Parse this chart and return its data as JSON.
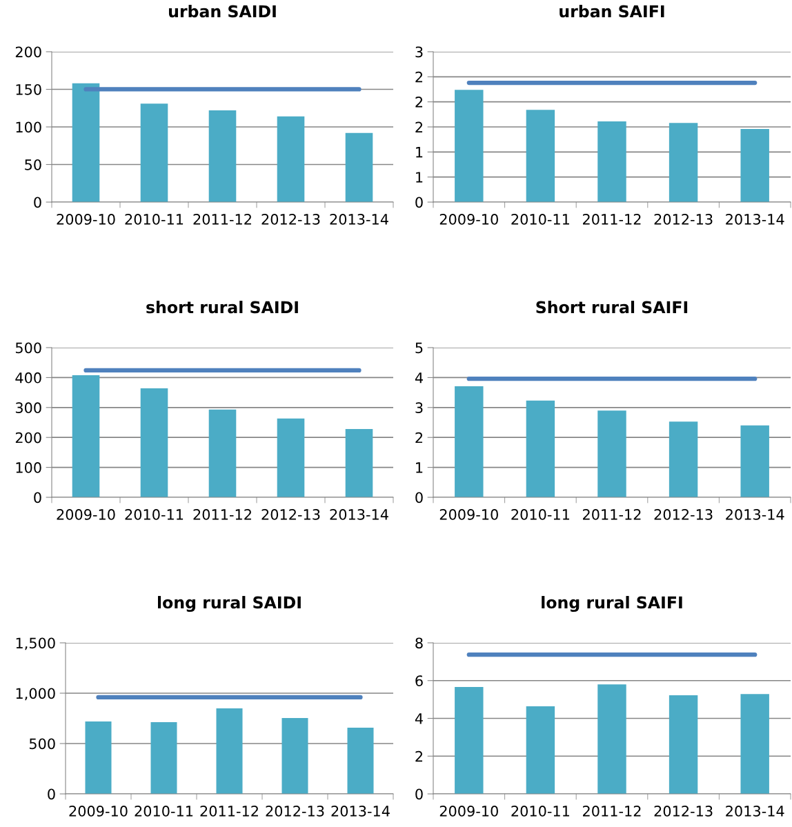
{
  "chart_data": [
    {
      "type": "bar",
      "title": "urban SAIDI",
      "categories": [
        "2009-10",
        "2010-11",
        "2011-12",
        "2012-13",
        "2013-14"
      ],
      "series": [
        {
          "color": "#4bacc6",
          "values": [
            158,
            131,
            122,
            114,
            92
          ]
        },
        {
          "type": "line",
          "color": "#4f81bd",
          "values": [
            150,
            150,
            150,
            150,
            150
          ]
        }
      ],
      "ylim": [
        0,
        200
      ],
      "yticks": [
        0,
        50,
        100,
        150,
        200
      ],
      "grid": "y",
      "legend": false
    },
    {
      "type": "bar",
      "title": "urban SAIFI",
      "categories": [
        "2009-10",
        "2010-11",
        "2011-12",
        "2012-13",
        "2013-14"
      ],
      "series": [
        {
          "color": "#4bacc6",
          "values": [
            2.24,
            1.84,
            1.61,
            1.58,
            1.46
          ]
        },
        {
          "type": "line",
          "color": "#4f81bd",
          "values": [
            2.38,
            2.38,
            2.38,
            2.38,
            2.38
          ]
        }
      ],
      "ylim": [
        0,
        3
      ],
      "yticks": [
        0,
        {
          "value": 0.5,
          "label": "1"
        },
        1,
        {
          "value": 1.5,
          "label": "2"
        },
        2,
        {
          "value": 2.5,
          "label": "2"
        },
        3
      ],
      "grid": "y",
      "legend": false
    },
    {
      "type": "bar",
      "title": "short rural SAIDI",
      "categories": [
        "2009-10",
        "2010-11",
        "2011-12",
        "2012-13",
        "2013-14"
      ],
      "series": [
        {
          "color": "#4bacc6",
          "values": [
            408,
            364,
            293,
            263,
            228
          ]
        },
        {
          "type": "line",
          "color": "#4f81bd",
          "values": [
            424,
            424,
            424,
            424,
            424
          ]
        }
      ],
      "ylim": [
        0,
        500
      ],
      "yticks": [
        0,
        100,
        200,
        300,
        400,
        500
      ],
      "grid": "y",
      "legend": false
    },
    {
      "type": "bar",
      "title": "Short rural SAIFI",
      "categories": [
        "2009-10",
        "2010-11",
        "2011-12",
        "2012-13",
        "2013-14"
      ],
      "series": [
        {
          "color": "#4bacc6",
          "values": [
            3.71,
            3.23,
            2.9,
            2.53,
            2.4
          ]
        },
        {
          "type": "line",
          "color": "#4f81bd",
          "values": [
            3.96,
            3.96,
            3.96,
            3.96,
            3.96
          ]
        }
      ],
      "ylim": [
        0,
        5
      ],
      "yticks": [
        0,
        1,
        2,
        3,
        4,
        5
      ],
      "grid": "y",
      "legend": false
    },
    {
      "type": "bar",
      "title": "long rural SAIDI",
      "categories": [
        "2009-10",
        "2010-11",
        "2011-12",
        "2012-13",
        "2013-14"
      ],
      "series": [
        {
          "color": "#4bacc6",
          "values": [
            719,
            712,
            849,
            753,
            658
          ]
        },
        {
          "type": "line",
          "color": "#4f81bd",
          "values": [
            959,
            959,
            959,
            959,
            959
          ]
        }
      ],
      "ylim": [
        0,
        1500
      ],
      "yticks": [
        0,
        500,
        {
          "value": 1000,
          "label": "1,000"
        },
        {
          "value": 1500,
          "label": "1,500"
        }
      ],
      "grid": "y",
      "legend": false
    },
    {
      "type": "bar",
      "title": "long rural SAIFI",
      "categories": [
        "2009-10",
        "2010-11",
        "2011-12",
        "2012-13",
        "2013-14"
      ],
      "series": [
        {
          "color": "#4bacc6",
          "values": [
            5.66,
            4.64,
            5.8,
            5.22,
            5.29
          ]
        },
        {
          "type": "line",
          "color": "#4f81bd",
          "values": [
            7.37,
            7.37,
            7.37,
            7.37,
            7.37
          ]
        }
      ],
      "ylim": [
        0,
        8
      ],
      "yticks": [
        0,
        2,
        4,
        6,
        8
      ],
      "grid": "y",
      "legend": false
    }
  ]
}
